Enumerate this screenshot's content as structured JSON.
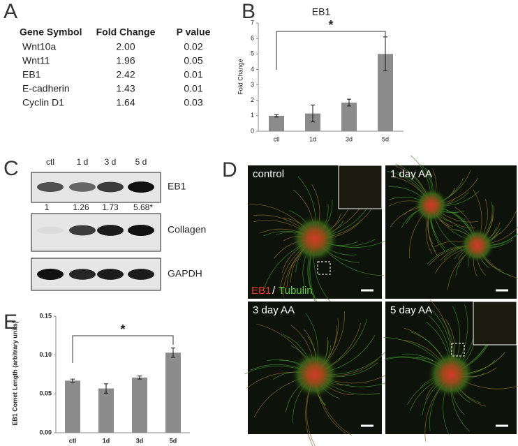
{
  "panel_letters": [
    "A",
    "B",
    "C",
    "D",
    "E"
  ],
  "table": {
    "columns": [
      "Gene Symbol",
      "Fold Change",
      "P value"
    ],
    "rows": [
      [
        "Wnt10a",
        "2.00",
        "0.02"
      ],
      [
        "Wnt11",
        "1.96",
        "0.05"
      ],
      [
        "EB1",
        "2.42",
        "0.01"
      ],
      [
        "E-cadherin",
        "1.43",
        "0.01"
      ],
      [
        "Cyclin D1",
        "1.64",
        "0.03"
      ]
    ]
  },
  "chart_data": [
    {
      "type": "bar",
      "title": "EB1",
      "y_label": "Fold  Change",
      "annotation": "*",
      "categories": [
        "ctl",
        "1d",
        "3d",
        "5d"
      ],
      "values": [
        1.0,
        1.15,
        1.85,
        5.0
      ],
      "errors": [
        0.08,
        0.55,
        0.22,
        1.1
      ],
      "color": "#8c8c8c",
      "ylim": [
        0,
        7
      ],
      "yticks": [
        0,
        1,
        2,
        3,
        4,
        5,
        6,
        7
      ]
    },
    {
      "type": "bar",
      "y_label": "EB1 Comet Length (arbitrary units)",
      "annotation": "*",
      "categories": [
        "ctl",
        "1d",
        "3d",
        "5d"
      ],
      "values": [
        0.067,
        0.057,
        0.071,
        0.103
      ],
      "errors": [
        0.002,
        0.006,
        0.002,
        0.006
      ],
      "color": "#8c8c8c",
      "ylim": [
        0,
        0.15
      ],
      "yticks": [
        {
          "value": 0,
          "label": "0.00"
        },
        {
          "value": 0.05,
          "label": "0.05"
        },
        {
          "value": 0.1,
          "label": "0.10"
        },
        {
          "value": 0.15,
          "label": "0.15"
        }
      ]
    }
  ],
  "blot": {
    "lanes": [
      "ctl",
      "1 d",
      "3 d",
      "5 d"
    ],
    "bands": [
      "EB1",
      "Collagen",
      "GAPDH"
    ],
    "quantification": [
      "1",
      "1.26",
      "1.73",
      "5.68*"
    ]
  },
  "micrographs": {
    "panels": [
      "control",
      "1 day AA",
      "3 day AA",
      "5 day AA"
    ],
    "legend": {
      "eb1": "EB1",
      "sep": "/",
      "tubulin": "Tubulin"
    }
  }
}
